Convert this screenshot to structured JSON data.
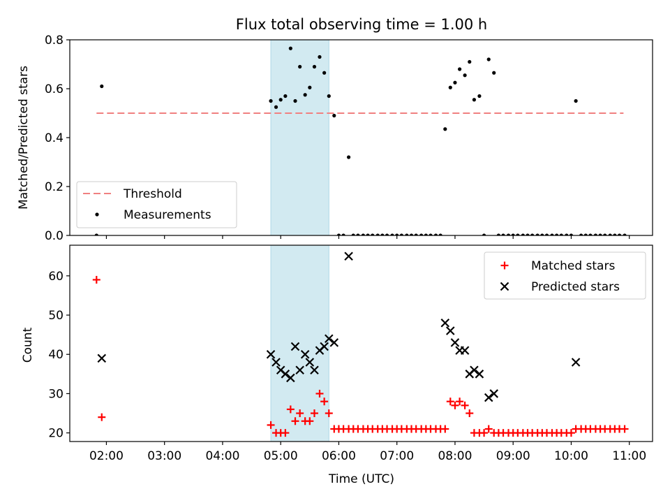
{
  "chart_data": [
    {
      "type": "scatter",
      "title": "Flux total observing time = 1.00 h",
      "xlabel": "",
      "ylabel": "Matched/Predicted stars",
      "x_unit": "decimal hours UTC",
      "xlim": [
        1.37,
        11.4
      ],
      "ylim": [
        0,
        0.8
      ],
      "yticks": [
        0.0,
        0.2,
        0.4,
        0.6,
        0.8
      ],
      "ytick_labels": [
        "0.0",
        "0.2",
        "0.4",
        "0.6",
        "0.8"
      ],
      "x_tick_labels_shown": false,
      "grid": false,
      "legend": {
        "position": "lower left",
        "entries": [
          "Threshold",
          "Measurements"
        ]
      },
      "highlight_span": {
        "x": [
          4.83,
          5.83
        ],
        "color": "#add8e6"
      },
      "series": [
        {
          "name": "Threshold",
          "style": "dashed-line",
          "color": "#f08080",
          "x": [
            1.83,
            10.9
          ],
          "y": [
            0.5,
            0.5
          ]
        },
        {
          "name": "Measurements",
          "style": "point",
          "color": "#000000",
          "x": [
            1.83,
            1.92,
            4.83,
            4.92,
            5.0,
            5.08,
            5.17,
            5.25,
            5.33,
            5.42,
            5.5,
            5.58,
            5.67,
            5.75,
            5.83,
            5.92,
            6.0,
            6.08,
            6.17,
            6.25,
            6.33,
            6.42,
            6.5,
            6.58,
            6.67,
            6.75,
            6.83,
            6.92,
            7.0,
            7.08,
            7.17,
            7.25,
            7.33,
            7.42,
            7.5,
            7.58,
            7.67,
            7.75,
            7.83,
            7.92,
            8.0,
            8.08,
            8.17,
            8.25,
            8.33,
            8.42,
            8.5,
            8.58,
            8.67,
            8.75,
            8.83,
            8.92,
            9.0,
            9.08,
            9.17,
            9.25,
            9.33,
            9.42,
            9.5,
            9.58,
            9.67,
            9.75,
            9.83,
            9.92,
            10.0,
            10.08,
            10.17,
            10.25,
            10.33,
            10.42,
            10.5,
            10.58,
            10.67,
            10.75,
            10.83,
            10.92
          ],
          "y": [
            0.0,
            0.61,
            0.55,
            0.525,
            0.555,
            0.57,
            0.765,
            0.55,
            0.69,
            0.575,
            0.605,
            0.69,
            0.73,
            0.665,
            0.57,
            0.49,
            0.0,
            0.0,
            0.32,
            0.0,
            0.0,
            0.0,
            0.0,
            0.0,
            0.0,
            0.0,
            0.0,
            0.0,
            0.0,
            0.0,
            0.0,
            0.0,
            0.0,
            0.0,
            0.0,
            0.0,
            0.0,
            0.0,
            0.435,
            0.605,
            0.625,
            0.68,
            0.655,
            0.71,
            0.555,
            0.57,
            0.0,
            0.72,
            0.665,
            0.0,
            0.0,
            0.0,
            0.0,
            0.0,
            0.0,
            0.0,
            0.0,
            0.0,
            0.0,
            0.0,
            0.0,
            0.0,
            0.0,
            0.0,
            0.0,
            0.55,
            0.0,
            0.0,
            0.0,
            0.0,
            0.0,
            0.0,
            0.0,
            0.0,
            0.0,
            0.0
          ]
        }
      ]
    },
    {
      "type": "scatter",
      "title": "",
      "xlabel": "Time (UTC)",
      "ylabel": "Count",
      "x_unit": "decimal hours UTC",
      "xlim": [
        1.37,
        11.4
      ],
      "ylim": [
        17.8,
        67.8
      ],
      "yticks": [
        20,
        30,
        40,
        50,
        60
      ],
      "ytick_labels": [
        "20",
        "30",
        "40",
        "50",
        "60"
      ],
      "xticks": [
        2,
        3,
        4,
        5,
        6,
        7,
        8,
        9,
        10,
        11
      ],
      "xtick_labels": [
        "02:00",
        "03:00",
        "04:00",
        "05:00",
        "06:00",
        "07:00",
        "08:00",
        "09:00",
        "10:00",
        "11:00"
      ],
      "grid": false,
      "legend": {
        "position": "upper right",
        "entries": [
          "Matched stars",
          "Predicted stars"
        ]
      },
      "highlight_span": {
        "x": [
          4.83,
          5.83
        ],
        "color": "#add8e6"
      },
      "series": [
        {
          "name": "Matched stars",
          "marker": "plus",
          "color": "#ff0000",
          "x": [
            1.83,
            1.92,
            4.83,
            4.92,
            5.0,
            5.08,
            5.17,
            5.25,
            5.33,
            5.42,
            5.5,
            5.58,
            5.67,
            5.75,
            5.83,
            5.92,
            6.0,
            6.08,
            6.17,
            6.25,
            6.33,
            6.42,
            6.5,
            6.58,
            6.67,
            6.75,
            6.83,
            6.92,
            7.0,
            7.08,
            7.17,
            7.25,
            7.33,
            7.42,
            7.5,
            7.58,
            7.67,
            7.75,
            7.83,
            7.92,
            8.0,
            8.08,
            8.17,
            8.25,
            8.33,
            8.42,
            8.5,
            8.58,
            8.67,
            8.75,
            8.83,
            8.92,
            9.0,
            9.08,
            9.17,
            9.25,
            9.33,
            9.42,
            9.5,
            9.58,
            9.67,
            9.75,
            9.83,
            9.92,
            10.0,
            10.08,
            10.17,
            10.25,
            10.33,
            10.42,
            10.5,
            10.58,
            10.67,
            10.75,
            10.83,
            10.92
          ],
          "y": [
            59,
            24,
            22,
            20,
            20,
            20,
            26,
            23,
            25,
            23,
            23,
            25,
            30,
            28,
            25,
            21,
            21,
            21,
            21,
            21,
            21,
            21,
            21,
            21,
            21,
            21,
            21,
            21,
            21,
            21,
            21,
            21,
            21,
            21,
            21,
            21,
            21,
            21,
            21,
            28,
            27,
            28,
            27,
            25,
            20,
            20,
            20,
            21,
            20,
            20,
            20,
            20,
            20,
            20,
            20,
            20,
            20,
            20,
            20,
            20,
            20,
            20,
            20,
            20,
            20,
            21,
            21,
            21,
            21,
            21,
            21,
            21,
            21,
            21,
            21,
            21
          ]
        },
        {
          "name": "Predicted stars",
          "marker": "x",
          "color": "#000000",
          "x": [
            1.92,
            4.83,
            4.92,
            5.0,
            5.08,
            5.17,
            5.25,
            5.33,
            5.42,
            5.5,
            5.58,
            5.67,
            5.75,
            5.83,
            5.92,
            6.17,
            7.83,
            7.92,
            8.0,
            8.08,
            8.17,
            8.25,
            8.33,
            8.42,
            8.58,
            8.67,
            10.08
          ],
          "y": [
            39,
            40,
            38,
            36,
            35,
            34,
            42,
            36,
            40,
            38,
            36,
            41,
            42,
            44,
            43,
            65,
            48,
            46,
            43,
            41,
            41,
            35,
            36,
            35,
            29,
            30,
            38
          ]
        }
      ]
    }
  ]
}
